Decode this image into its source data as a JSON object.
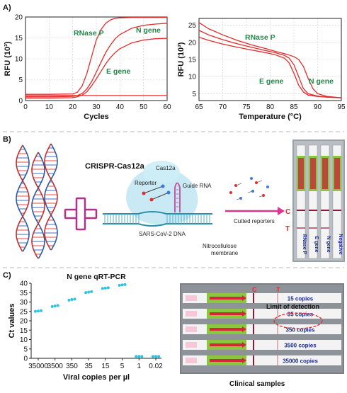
{
  "panels": {
    "a": "A)",
    "b": "B)",
    "c": "C)"
  },
  "chart_data": [
    {
      "type": "line",
      "title": "",
      "xlabel": "Cycles",
      "ylabel": "RFU (10³)",
      "xlim": [
        0,
        60
      ],
      "ylim": [
        0,
        20
      ],
      "xticks": [
        "0",
        "10",
        "20",
        "30",
        "40",
        "50",
        "60"
      ],
      "yticks": [
        "0",
        "5",
        "10",
        "15",
        "20"
      ],
      "grid": true,
      "series": [
        {
          "name": "RNase P",
          "x": [
            0,
            10,
            20,
            22,
            24,
            26,
            28,
            30,
            32,
            34,
            36,
            38,
            40,
            45,
            50,
            55,
            60
          ],
          "y": [
            1.5,
            1.5,
            1.6,
            2.0,
            3.5,
            6.5,
            10.5,
            14.5,
            17.0,
            18.5,
            19.3,
            19.7,
            19.8,
            19.9,
            19.9,
            19.9,
            19.9
          ]
        },
        {
          "name": "N gene",
          "x": [
            0,
            10,
            20,
            22,
            24,
            26,
            28,
            30,
            32,
            34,
            36,
            38,
            40,
            45,
            50,
            55,
            60
          ],
          "y": [
            0.9,
            0.9,
            1.0,
            1.2,
            1.7,
            2.8,
            4.5,
            6.8,
            9.2,
            11.5,
            13.3,
            14.8,
            15.8,
            17.3,
            18.0,
            18.3,
            18.5
          ]
        },
        {
          "name": "E gene",
          "x": [
            0,
            10,
            20,
            22,
            24,
            26,
            28,
            30,
            32,
            34,
            36,
            38,
            40,
            45,
            50,
            55,
            60
          ],
          "y": [
            0.6,
            0.6,
            0.7,
            0.9,
            1.3,
            2.1,
            3.5,
            5.2,
            7.0,
            8.8,
            10.3,
            11.5,
            12.4,
            13.8,
            14.5,
            14.8,
            14.9
          ]
        },
        {
          "name": "",
          "x": [
            0,
            10,
            20,
            30,
            40,
            50,
            60
          ],
          "y": [
            1.2,
            1.2,
            1.2,
            1.2,
            1.2,
            1.2,
            1.2
          ]
        }
      ],
      "annotations": [
        "RNase P",
        "N gene",
        "E gene"
      ]
    },
    {
      "type": "line",
      "title": "",
      "xlabel": "Temperature (°C)",
      "ylabel": "RFU (10³)",
      "xlim": [
        65,
        95
      ],
      "ylim": [
        3,
        27
      ],
      "xticks": [
        "65",
        "70",
        "75",
        "80",
        "85",
        "90",
        "95"
      ],
      "yticks": [
        "5",
        "10",
        "15",
        "20",
        "25"
      ],
      "grid": true,
      "series": [
        {
          "name": "RNase P",
          "x": [
            65,
            67,
            70,
            73,
            76,
            79,
            81,
            83,
            84,
            85,
            86,
            87,
            88,
            90,
            92,
            95
          ],
          "y": [
            21.5,
            20.6,
            19.5,
            18.6,
            17.8,
            17.0,
            16.4,
            15.4,
            14.0,
            11.0,
            7.5,
            5.5,
            4.6,
            4.2,
            4.0,
            3.8
          ]
        },
        {
          "name": "E gene",
          "x": [
            65,
            67,
            70,
            73,
            76,
            79,
            81,
            83,
            84,
            85,
            86,
            87,
            88,
            90,
            92,
            95
          ],
          "y": [
            23.5,
            22.2,
            20.8,
            19.6,
            18.6,
            17.6,
            17.0,
            16.2,
            15.4,
            13.5,
            10.0,
            6.5,
            5.0,
            4.3,
            4.0,
            3.8
          ]
        },
        {
          "name": "N gene",
          "x": [
            65,
            67,
            70,
            73,
            76,
            79,
            81,
            83,
            84,
            85,
            86,
            87,
            88,
            89,
            90,
            92,
            95
          ],
          "y": [
            25.8,
            24.0,
            22.2,
            20.6,
            19.3,
            18.2,
            17.4,
            16.7,
            16.3,
            15.8,
            15.0,
            13.0,
            9.5,
            6.5,
            5.0,
            4.2,
            3.8
          ]
        }
      ],
      "annotations": [
        "RNase P",
        "E gene",
        "N gene"
      ]
    },
    {
      "type": "scatter",
      "title": "N gene qRT-PCR",
      "xlabel": "Viral copies per µl",
      "ylabel": "Ct values",
      "ylim": [
        0,
        40
      ],
      "categories": [
        "35000",
        "3500",
        "350",
        "35",
        "15",
        "5",
        "1",
        "0.02"
      ],
      "yticks": [
        "0",
        "5",
        "10",
        "15",
        "20",
        "25",
        "30",
        "35",
        "40"
      ],
      "values": [
        [
          25.0,
          25.2,
          25.4
        ],
        [
          27.6,
          27.9,
          28.1
        ],
        [
          31.0,
          31.3,
          31.5
        ],
        [
          35.0,
          35.3,
          35.5
        ],
        [
          37.2,
          37.4,
          37.6
        ],
        [
          38.9,
          39.1,
          39.3
        ],
        [
          1.0,
          1.0,
          1.0
        ],
        [
          1.0,
          1.0,
          1.0
        ]
      ],
      "grid": false,
      "color": "#2ec3e6"
    }
  ],
  "diagram": {
    "crispr_title": "CRISPR-Cas12a",
    "cas12a": "Cas12a",
    "reporter": "Reporter",
    "guide_rna": "Guide RNA",
    "sars_dna": "SARS-CoV-2 DNA",
    "cutted": "Cutted reporters",
    "membrane_line1": "Nitrocellulose",
    "membrane_line2": "membrane",
    "c_label": "C",
    "t_label": "T",
    "strips": [
      "RNase P",
      "E gene",
      "N gene",
      "Negative"
    ]
  },
  "clinical": {
    "c_label": "C",
    "t_label": "T",
    "lod": "Limit of detection",
    "copies": [
      "15 copies",
      "35 copies",
      "350 copies",
      "3500 copies",
      "35000 copies"
    ],
    "caption": "Clinical samples"
  },
  "colors": {
    "curve": "#e32b2b",
    "series_label": "#1e8a4a",
    "scatter": "#2ec3e6",
    "arrow": "#e0338b",
    "strip_green": "#8ac63e",
    "strip_text": "#1a2a9a"
  }
}
